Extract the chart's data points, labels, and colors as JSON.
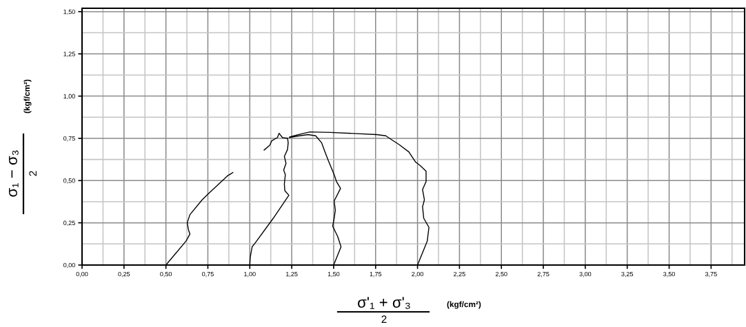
{
  "chart_data": {
    "type": "line",
    "xlabel": "σ'₁ + σ'₃\n2\n(kgf/cm²)",
    "ylabel": "σ₁ − σ₃\n2\n(kgf/cm²)",
    "xlim": [
      0,
      3.95
    ],
    "ylim": [
      0,
      1.52
    ],
    "xticks": [
      {
        "value": 0,
        "label": "0,00"
      },
      {
        "value": 0.25,
        "label": "0,25"
      },
      {
        "value": 0.5,
        "label": "0,50"
      },
      {
        "value": 0.75,
        "label": "0,75"
      },
      {
        "value": 1,
        "label": "1,00"
      },
      {
        "value": 1.25,
        "label": "1,25"
      },
      {
        "value": 1.5,
        "label": "1,50"
      },
      {
        "value": 1.75,
        "label": "1,75"
      },
      {
        "value": 2,
        "label": "2,00"
      },
      {
        "value": 2.25,
        "label": "2,25"
      },
      {
        "value": 2.5,
        "label": "2,50"
      },
      {
        "value": 2.75,
        "label": "2,75"
      },
      {
        "value": 3,
        "label": "3,00"
      },
      {
        "value": 3.25,
        "label": "3,25"
      },
      {
        "value": 3.5,
        "label": "3,50"
      },
      {
        "value": 3.75,
        "label": "3,75"
      }
    ],
    "yticks": [
      {
        "value": 0,
        "label": "0,00"
      },
      {
        "value": 0.25,
        "label": "0,25"
      },
      {
        "value": 0.5,
        "label": "0,50"
      },
      {
        "value": 0.75,
        "label": "0,75"
      },
      {
        "value": 1,
        "label": "1,00"
      },
      {
        "value": 1.25,
        "label": "1,25"
      },
      {
        "value": 1.5,
        "label": "1,50"
      }
    ],
    "grid": true,
    "series": [
      {
        "color": "#000000",
        "x": [
          0.5,
          0.62,
          0.643,
          0.634,
          0.627,
          0.643,
          0.716,
          0.757,
          0.867,
          0.9,
          0.88
        ],
        "values": [
          0,
          0.142,
          0.183,
          0.21,
          0.25,
          0.298,
          0.386,
          0.426,
          0.528,
          0.548,
          0.535
        ]
      },
      {
        "color": "#000000",
        "x": [
          1.0,
          1.003,
          1.014,
          1.031,
          1.14,
          1.233,
          1.209,
          1.206,
          1.212,
          1.202,
          1.216,
          1.206,
          1.225,
          1.229,
          1.225,
          1.195,
          1.175,
          1.165,
          1.13,
          1.12,
          1.085
        ],
        "values": [
          0,
          0.047,
          0.108,
          0.129,
          0.277,
          0.413,
          0.44,
          0.48,
          0.535,
          0.562,
          0.602,
          0.643,
          0.684,
          0.724,
          0.751,
          0.754,
          0.78,
          0.755,
          0.735,
          0.71,
          0.68
        ]
      },
      {
        "color": "#000000",
        "x": [
          1.5,
          1.544,
          1.524,
          1.494,
          1.503,
          1.51,
          1.503,
          1.541,
          1.517,
          1.503,
          1.469,
          1.448,
          1.428,
          1.393,
          1.346,
          1.277,
          1.236
        ],
        "values": [
          0,
          0.108,
          0.169,
          0.23,
          0.277,
          0.325,
          0.379,
          0.454,
          0.494,
          0.535,
          0.616,
          0.67,
          0.724,
          0.765,
          0.772,
          0.762,
          0.755
        ]
      },
      {
        "color": "#000000",
        "x": [
          2.0,
          2.058,
          2.068,
          2.037,
          2.03,
          2.041,
          2.03,
          2.051,
          2.051,
          2.016,
          1.989,
          1.948,
          1.893,
          1.832,
          1.811,
          1.756,
          1.619,
          1.483,
          1.359,
          1.318,
          1.264,
          1.236
        ],
        "values": [
          0,
          0.142,
          0.223,
          0.277,
          0.345,
          0.386,
          0.447,
          0.494,
          0.555,
          0.589,
          0.609,
          0.67,
          0.711,
          0.751,
          0.765,
          0.772,
          0.779,
          0.785,
          0.788,
          0.779,
          0.765,
          0.757
        ]
      }
    ]
  }
}
